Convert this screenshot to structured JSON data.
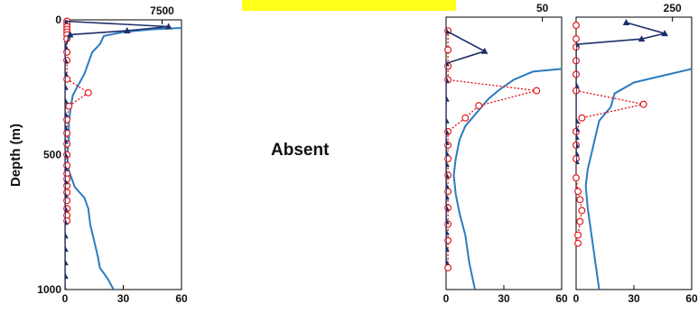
{
  "figure": {
    "y_axis_label": "Depth (m)",
    "absent_label": "Absent",
    "colors": {
      "triangle_series": "#1f2f6b",
      "circle_series": "#e41a1c",
      "profile_line": "#2b7bbf",
      "highlight": "#ffff1a"
    }
  },
  "chart_data": [
    {
      "id": "panel-1",
      "type": "line",
      "ylim": [
        1000,
        0
      ],
      "y_ticks": [
        0,
        500,
        1000
      ],
      "xlim_bottom": [
        0,
        60
      ],
      "x_ticks_bottom": [
        0,
        30,
        60
      ],
      "xlim_top": [
        0,
        9000
      ],
      "x_ticks_top": [
        7500
      ],
      "series": [
        {
          "axis": "top",
          "marker": "triangle",
          "line": "solid",
          "points": [
            [
              0,
              5
            ],
            [
              8000,
              25
            ],
            [
              4800,
              40
            ],
            [
              400,
              55
            ],
            [
              0,
              100
            ],
            [
              0,
              150
            ],
            [
              0,
              200
            ],
            [
              0,
              250
            ],
            [
              0,
              300
            ],
            [
              0,
              350
            ],
            [
              0,
              400
            ],
            [
              0,
              450
            ],
            [
              0,
              500
            ],
            [
              0,
              550
            ],
            [
              0,
              600
            ],
            [
              0,
              650
            ],
            [
              0,
              700
            ],
            [
              0,
              750
            ],
            [
              0,
              800
            ],
            [
              0,
              850
            ],
            [
              0,
              900
            ],
            [
              0,
              950
            ],
            [
              0,
              1000
            ]
          ]
        },
        {
          "axis": "bottom",
          "marker": "circle",
          "line": "dotted",
          "points": [
            [
              1,
              5
            ],
            [
              1,
              15
            ],
            [
              1,
              25
            ],
            [
              1,
              35
            ],
            [
              1,
              45
            ],
            [
              1,
              55
            ],
            [
              1,
              70
            ],
            [
              1,
              120
            ],
            [
              1,
              150
            ],
            [
              1,
              220
            ],
            [
              12,
              270
            ],
            [
              2,
              320
            ],
            [
              1,
              370
            ],
            [
              1,
              420
            ],
            [
              1,
              460
            ],
            [
              1,
              500
            ],
            [
              1,
              540
            ],
            [
              1,
              570
            ],
            [
              1,
              590
            ],
            [
              1,
              615
            ],
            [
              1,
              640
            ],
            [
              1,
              670
            ],
            [
              1,
              700
            ],
            [
              1,
              725
            ],
            [
              1,
              745
            ]
          ]
        },
        {
          "axis": "bottom",
          "marker": "none",
          "line": "profile",
          "points": [
            [
              60,
              30
            ],
            [
              45,
              35
            ],
            [
              30,
              45
            ],
            [
              20,
              60
            ],
            [
              18,
              90
            ],
            [
              14,
              120
            ],
            [
              12,
              160
            ],
            [
              10,
              200
            ],
            [
              7,
              240
            ],
            [
              4,
              280
            ],
            [
              3,
              320
            ],
            [
              2,
              380
            ],
            [
              2,
              450
            ],
            [
              1,
              500
            ],
            [
              2,
              560
            ],
            [
              5,
              620
            ],
            [
              10,
              660
            ],
            [
              12,
              700
            ],
            [
              13,
              760
            ],
            [
              15,
              820
            ],
            [
              17,
              880
            ],
            [
              18,
              920
            ],
            [
              22,
              960
            ],
            [
              25,
              1000
            ]
          ]
        }
      ]
    },
    {
      "id": "panel-2",
      "type": "line",
      "ylim": [
        1000,
        0
      ],
      "y_ticks": [],
      "xlim_bottom": [
        0,
        60
      ],
      "x_ticks_bottom": [
        0,
        30,
        60
      ],
      "xlim_top": [
        0,
        60
      ],
      "x_ticks_top": [
        50
      ],
      "series": [
        {
          "axis": "top",
          "marker": "triangle",
          "line": "solid",
          "points": [
            [
              0,
              50
            ],
            [
              20,
              125
            ],
            [
              0,
              170
            ],
            [
              0,
              230
            ],
            [
              0,
              300
            ],
            [
              0,
              380
            ],
            [
              0,
              420
            ],
            [
              0,
              460
            ],
            [
              0,
              500
            ],
            [
              0,
              540
            ],
            [
              0,
              580
            ],
            [
              0,
              620
            ],
            [
              0,
              660
            ],
            [
              0,
              700
            ],
            [
              0,
              750
            ],
            [
              0,
              790
            ],
            [
              0,
              850
            ],
            [
              0,
              900
            ]
          ]
        },
        {
          "axis": "bottom",
          "marker": "circle",
          "line": "dotted",
          "points": [
            [
              1,
              50
            ],
            [
              1,
              120
            ],
            [
              1,
              180
            ],
            [
              1,
              230
            ],
            [
              47,
              270
            ],
            [
              17,
              325
            ],
            [
              10,
              370
            ],
            [
              1,
              420
            ],
            [
              1,
              470
            ],
            [
              1,
              520
            ],
            [
              1,
              580
            ],
            [
              1,
              640
            ],
            [
              1,
              700
            ],
            [
              1,
              760
            ],
            [
              1,
              820
            ],
            [
              1,
              920
            ]
          ]
        },
        {
          "axis": "bottom",
          "marker": "none",
          "line": "profile",
          "points": [
            [
              60,
              190
            ],
            [
              45,
              200
            ],
            [
              35,
              230
            ],
            [
              28,
              265
            ],
            [
              22,
              300
            ],
            [
              16,
              350
            ],
            [
              10,
              400
            ],
            [
              7,
              450
            ],
            [
              5,
              520
            ],
            [
              4,
              580
            ],
            [
              5,
              650
            ],
            [
              7,
              720
            ],
            [
              10,
              800
            ],
            [
              12,
              900
            ],
            [
              15,
              1000
            ]
          ]
        }
      ]
    },
    {
      "id": "panel-3",
      "type": "line",
      "ylim": [
        1000,
        0
      ],
      "y_ticks": [],
      "xlim_bottom": [
        0,
        60
      ],
      "x_ticks_bottom": [
        0,
        30,
        60
      ],
      "xlim_top": [
        0,
        300
      ],
      "x_ticks_top": [
        250
      ],
      "series": [
        {
          "axis": "top",
          "marker": "triangle",
          "line": "solid",
          "points": [
            [
              130,
              20
            ],
            [
              230,
              60
            ],
            [
              170,
              80
            ],
            [
              0,
              100
            ],
            [
              0,
              250
            ],
            [
              0,
              380
            ],
            [
              0,
              410
            ],
            [
              0,
              440
            ],
            [
              0,
              470
            ],
            [
              0,
              500
            ],
            [
              0,
              530
            ]
          ]
        },
        {
          "axis": "bottom",
          "marker": "circle",
          "line": "dotted",
          "points": [
            [
              0,
              30
            ],
            [
              0,
              80
            ],
            [
              0,
              110
            ],
            [
              0,
              160
            ],
            [
              0,
              210
            ],
            [
              0,
              270
            ],
            [
              35,
              320
            ],
            [
              3,
              370
            ],
            [
              0,
              420
            ],
            [
              0,
              470
            ],
            [
              0,
              520
            ],
            [
              0,
              590
            ],
            [
              1,
              640
            ],
            [
              2,
              670
            ],
            [
              3,
              710
            ],
            [
              2,
              750
            ],
            [
              1,
              800
            ],
            [
              1,
              830
            ]
          ]
        },
        {
          "axis": "bottom",
          "marker": "none",
          "line": "profile",
          "points": [
            [
              60,
              190
            ],
            [
              45,
              215
            ],
            [
              30,
              240
            ],
            [
              20,
              280
            ],
            [
              18,
              330
            ],
            [
              12,
              380
            ],
            [
              10,
              440
            ],
            [
              8,
              500
            ],
            [
              6,
              560
            ],
            [
              5,
              620
            ],
            [
              6,
              700
            ],
            [
              8,
              800
            ],
            [
              10,
              900
            ],
            [
              12,
              1000
            ]
          ]
        }
      ]
    }
  ]
}
